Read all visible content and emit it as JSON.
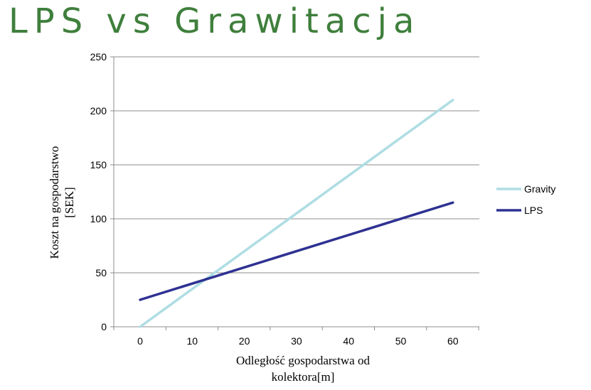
{
  "slide": {
    "title": "LPS vs Grawitacja"
  },
  "chart_data": {
    "type": "line",
    "title": "",
    "xlabel_lines": [
      "Odległość gospodarstwa od",
      "kolektora[m]"
    ],
    "ylabel_lines": [
      "Koszt na gospodarstwo",
      "[SEK]"
    ],
    "x_categories": [
      "0",
      "10",
      "20",
      "30",
      "40",
      "50",
      "60"
    ],
    "y_ticks": [
      0,
      50,
      100,
      150,
      200,
      250
    ],
    "ylim": [
      0,
      250
    ],
    "grid": "horizontal",
    "legend_position": "right",
    "series": [
      {
        "name": "Gravity",
        "color": "#aedde3",
        "x": [
          0,
          60
        ],
        "y": [
          0,
          210
        ]
      },
      {
        "name": "LPS",
        "color": "#2e3192",
        "x": [
          0,
          60
        ],
        "y": [
          25,
          115
        ]
      }
    ]
  }
}
